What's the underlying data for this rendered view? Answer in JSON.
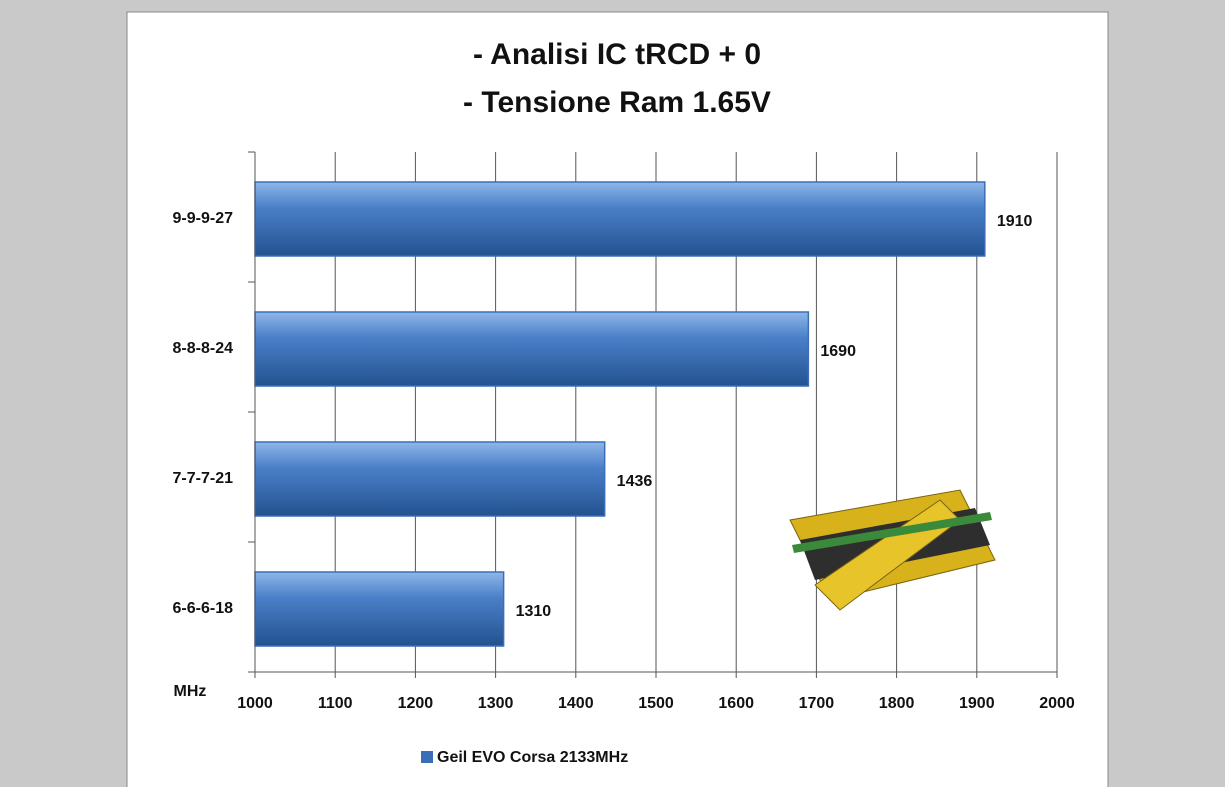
{
  "chart_data": {
    "type": "hbar",
    "title_lines": [
      "- Analisi IC  tRCD + 0",
      "- Tensione Ram 1.65V"
    ],
    "x_label": "MHz",
    "categories": [
      "9-9-9-27",
      "8-8-8-24",
      "7-7-7-21",
      "6-6-6-18"
    ],
    "series": [
      {
        "name": "Geil EVO Corsa 2133MHz",
        "color": "#3a6fb8",
        "values": [
          1910,
          1690,
          1436,
          1310
        ]
      }
    ],
    "xlim": [
      1000,
      2000
    ],
    "xticks": [
      1000,
      1100,
      1200,
      1300,
      1400,
      1500,
      1600,
      1700,
      1800,
      1900,
      2000
    ],
    "grid": true,
    "legend": "bottom"
  }
}
